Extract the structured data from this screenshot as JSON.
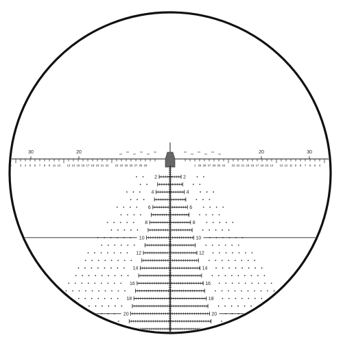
{
  "reticle": {
    "line_color": "#1a1a1a",
    "dot_color": "#333333",
    "marker_color": "#666666",
    "horizontal_major_labels": {
      "left": [
        "30",
        "20"
      ],
      "right": [
        "20",
        "30"
      ]
    },
    "horizontal_minor_ticks_per_side": 31,
    "horizontal_minor_labels": [
      "29",
      "28",
      "27",
      "26",
      "25",
      "24",
      "23",
      "22",
      "21",
      "19",
      "18",
      "17",
      "16",
      "15",
      "14",
      "13",
      "12",
      "11",
      "9",
      "8",
      "7",
      "6",
      "5",
      "4",
      "3",
      "2",
      "1"
    ],
    "vertical_ladder": [
      {
        "value": "2",
        "labeled": true
      },
      {
        "value": "3",
        "labeled": false
      },
      {
        "value": "4",
        "labeled": true
      },
      {
        "value": "5",
        "labeled": false
      },
      {
        "value": "6",
        "labeled": true
      },
      {
        "value": "7",
        "labeled": false
      },
      {
        "value": "8",
        "labeled": true
      },
      {
        "value": "9",
        "labeled": false
      },
      {
        "value": "10",
        "labeled": true
      },
      {
        "value": "11",
        "labeled": false
      },
      {
        "value": "12",
        "labeled": true
      },
      {
        "value": "13",
        "labeled": false
      },
      {
        "value": "14",
        "labeled": true
      },
      {
        "value": "15",
        "labeled": false
      },
      {
        "value": "16",
        "labeled": true
      },
      {
        "value": "17",
        "labeled": false
      },
      {
        "value": "18",
        "labeled": true
      },
      {
        "value": "19",
        "labeled": false
      },
      {
        "value": "20",
        "labeled": true
      },
      {
        "value": "21",
        "labeled": false
      },
      {
        "value": "22",
        "labeled": true
      }
    ],
    "bar_label": "10"
  }
}
